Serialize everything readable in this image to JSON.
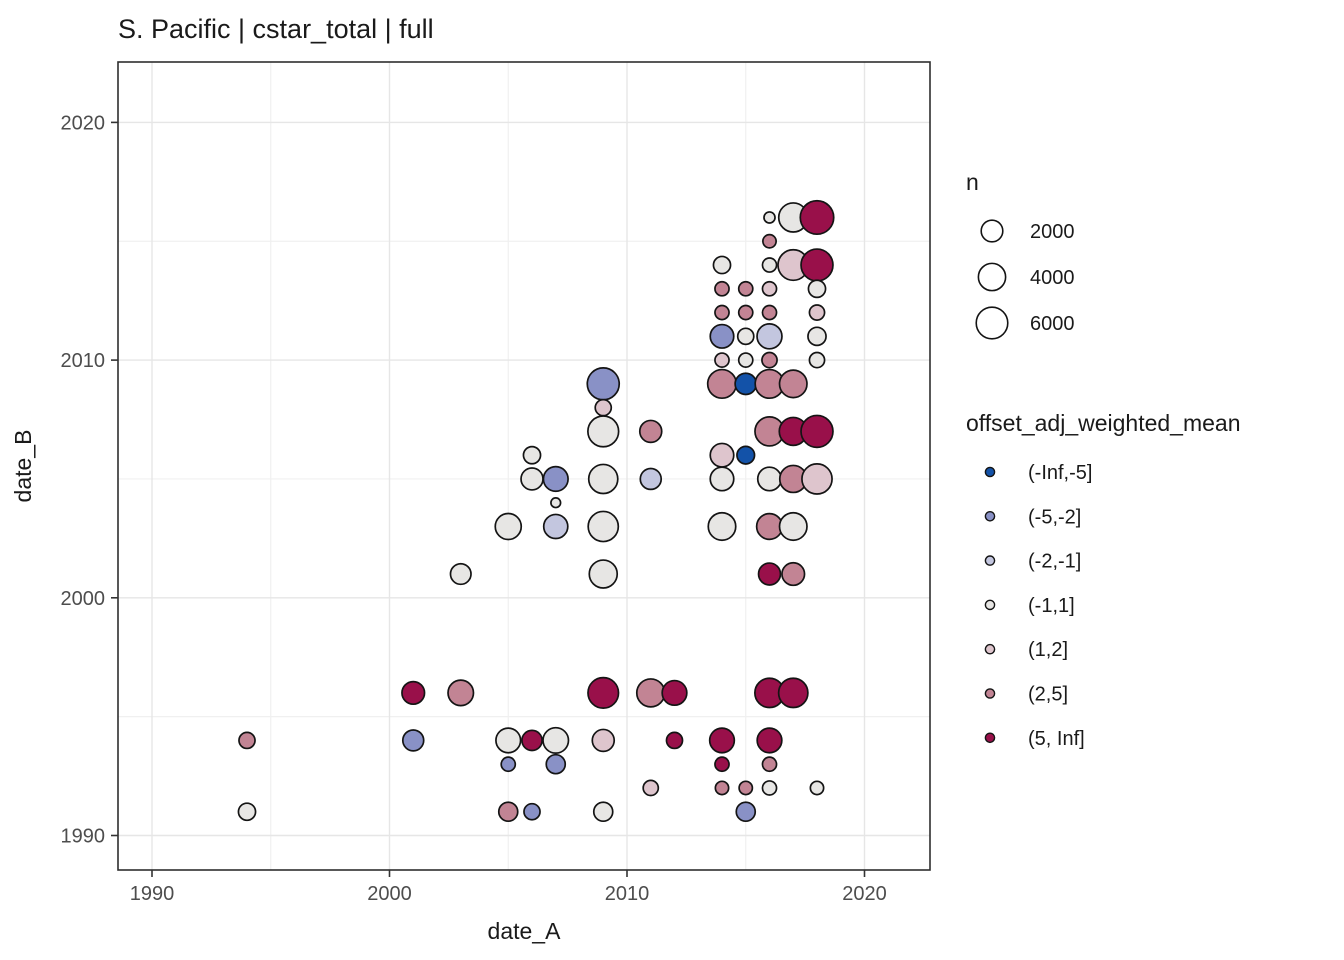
{
  "title": "S. Pacific | cstar_total | full",
  "x_axis": {
    "title": "date_A",
    "ticks": [
      1990,
      2000,
      2010,
      2020
    ],
    "minor_gridlines": [
      1995,
      2005,
      2015
    ],
    "range": [
      1988.6,
      2022.8
    ]
  },
  "y_axis": {
    "title": "date_B",
    "ticks": [
      1990,
      2000,
      2010,
      2020
    ],
    "minor_gridlines": [
      1995,
      2005,
      2015
    ],
    "range": [
      1988.5,
      2022.5
    ]
  },
  "legend_size": {
    "title": "n",
    "values": [
      2000,
      4000,
      6000
    ]
  },
  "legend_color": {
    "title": "offset_adj_weighted_mean",
    "items": [
      {
        "label": "(-Inf,-5]",
        "color": "#1352A8"
      },
      {
        "label": "(-5,-2]",
        "color": "#8991C6"
      },
      {
        "label": "(-2,-1]",
        "color": "#C3C6DF"
      },
      {
        "label": "(-1,1]",
        "color": "#E7E6E4"
      },
      {
        "label": "(1,2]",
        "color": "#DEC5CD"
      },
      {
        "label": "(2,5]",
        "color": "#C28494"
      },
      {
        "label": "(5, Inf]",
        "color": "#99104A"
      }
    ]
  },
  "chart_data": {
    "type": "scatter",
    "title": "S. Pacific | cstar_total | full",
    "xlabel": "date_A",
    "ylabel": "date_B",
    "xlim": [
      1988.6,
      2022.8
    ],
    "ylim": [
      1988.5,
      2022.5
    ],
    "grid": true,
    "legend_position": "right",
    "size_variable": "n",
    "color_variable": "offset_adj_weighted_mean",
    "point_format": "x = date_A year, y = date_B year, n = bubble size (count), b = offset_adj_weighted_mean bin",
    "points": [
      {
        "x": 1994,
        "y": 1994,
        "n": 700,
        "b": "(2,5]"
      },
      {
        "x": 1994,
        "y": 1991,
        "n": 900,
        "b": "(-1,1]"
      },
      {
        "x": 2001,
        "y": 1996,
        "n": 2300,
        "b": "(5, Inf]"
      },
      {
        "x": 2001,
        "y": 1994,
        "n": 1800,
        "b": "(-5,-2]"
      },
      {
        "x": 2003,
        "y": 2001,
        "n": 1700,
        "b": "(-1,1]"
      },
      {
        "x": 2003,
        "y": 1996,
        "n": 3300,
        "b": "(2,5]"
      },
      {
        "x": 2005,
        "y": 2003,
        "n": 3500,
        "b": "(-1,1]"
      },
      {
        "x": 2005,
        "y": 1994,
        "n": 3000,
        "b": "(-1,1]"
      },
      {
        "x": 2005,
        "y": 1993,
        "n": 400,
        "b": "(-5,-2]"
      },
      {
        "x": 2005,
        "y": 1991,
        "n": 1300,
        "b": "(2,5]"
      },
      {
        "x": 2006,
        "y": 2006,
        "n": 900,
        "b": "(-1,1]"
      },
      {
        "x": 2006,
        "y": 2005,
        "n": 2100,
        "b": "(-1,1]"
      },
      {
        "x": 2006,
        "y": 1994,
        "n": 1600,
        "b": "(5, Inf]"
      },
      {
        "x": 2006,
        "y": 1991,
        "n": 700,
        "b": "(-5,-2]"
      },
      {
        "x": 2007,
        "y": 2005,
        "n": 3000,
        "b": "(-5,-2]"
      },
      {
        "x": 2007,
        "y": 2004,
        "n": 30,
        "b": "(-1,1]"
      },
      {
        "x": 2007,
        "y": 2003,
        "n": 2800,
        "b": "(-2,-1]"
      },
      {
        "x": 2007,
        "y": 1994,
        "n": 3300,
        "b": "(-1,1]"
      },
      {
        "x": 2007,
        "y": 1993,
        "n": 1300,
        "b": "(-5,-2]"
      },
      {
        "x": 2009,
        "y": 2009,
        "n": 6200,
        "b": "(-5,-2]"
      },
      {
        "x": 2009,
        "y": 2008,
        "n": 700,
        "b": "(1,2]"
      },
      {
        "x": 2009,
        "y": 2007,
        "n": 5600,
        "b": "(-1,1]"
      },
      {
        "x": 2009,
        "y": 2005,
        "n": 4800,
        "b": "(-1,1]"
      },
      {
        "x": 2009,
        "y": 2003,
        "n": 5300,
        "b": "(-1,1]"
      },
      {
        "x": 2009,
        "y": 2001,
        "n": 4300,
        "b": "(-1,1]"
      },
      {
        "x": 2009,
        "y": 1996,
        "n": 5500,
        "b": "(5, Inf]"
      },
      {
        "x": 2009,
        "y": 1994,
        "n": 2100,
        "b": "(1,2]"
      },
      {
        "x": 2009,
        "y": 1991,
        "n": 1300,
        "b": "(-1,1]"
      },
      {
        "x": 2011,
        "y": 2007,
        "n": 2100,
        "b": "(2,5]"
      },
      {
        "x": 2011,
        "y": 2005,
        "n": 1800,
        "b": "(-2,-1]"
      },
      {
        "x": 2011,
        "y": 1996,
        "n": 4300,
        "b": "(2,5]"
      },
      {
        "x": 2011,
        "y": 1992,
        "n": 550,
        "b": "(1,2]"
      },
      {
        "x": 2012,
        "y": 1996,
        "n": 3000,
        "b": "(5, Inf]"
      },
      {
        "x": 2012,
        "y": 1994,
        "n": 700,
        "b": "(5, Inf]"
      },
      {
        "x": 2014,
        "y": 2014,
        "n": 900,
        "b": "(-1,1]"
      },
      {
        "x": 2014,
        "y": 2013,
        "n": 400,
        "b": "(2,5]"
      },
      {
        "x": 2014,
        "y": 2012,
        "n": 400,
        "b": "(2,5]"
      },
      {
        "x": 2014,
        "y": 2011,
        "n": 2600,
        "b": "(-5,-2]"
      },
      {
        "x": 2014,
        "y": 2010,
        "n": 400,
        "b": "(1,2]"
      },
      {
        "x": 2014,
        "y": 2009,
        "n": 4600,
        "b": "(2,5]"
      },
      {
        "x": 2014,
        "y": 2006,
        "n": 2600,
        "b": "(1,2]"
      },
      {
        "x": 2014,
        "y": 2005,
        "n": 2600,
        "b": "(-1,1]"
      },
      {
        "x": 2014,
        "y": 2003,
        "n": 4100,
        "b": "(-1,1]"
      },
      {
        "x": 2014,
        "y": 1994,
        "n": 3000,
        "b": "(5, Inf]"
      },
      {
        "x": 2014,
        "y": 1993,
        "n": 400,
        "b": "(5, Inf]"
      },
      {
        "x": 2014,
        "y": 1992,
        "n": 300,
        "b": "(2,5]"
      },
      {
        "x": 2015,
        "y": 2013,
        "n": 400,
        "b": "(2,5]"
      },
      {
        "x": 2015,
        "y": 2012,
        "n": 400,
        "b": "(2,5]"
      },
      {
        "x": 2015,
        "y": 2011,
        "n": 700,
        "b": "(-1,1]"
      },
      {
        "x": 2015,
        "y": 2010,
        "n": 400,
        "b": "(-1,1]"
      },
      {
        "x": 2015,
        "y": 2009,
        "n": 1900,
        "b": "(-Inf,-5]"
      },
      {
        "x": 2015,
        "y": 2006,
        "n": 1000,
        "b": "(-Inf,-5]"
      },
      {
        "x": 2015,
        "y": 1992,
        "n": 300,
        "b": "(2,5]"
      },
      {
        "x": 2015,
        "y": 1991,
        "n": 1300,
        "b": "(-5,-2]"
      },
      {
        "x": 2016,
        "y": 2016,
        "n": 100,
        "b": "(-1,1]"
      },
      {
        "x": 2016,
        "y": 2015,
        "n": 300,
        "b": "(2,5]"
      },
      {
        "x": 2016,
        "y": 2014,
        "n": 400,
        "b": "(-1,1]"
      },
      {
        "x": 2016,
        "y": 2013,
        "n": 400,
        "b": "(1,2]"
      },
      {
        "x": 2016,
        "y": 2012,
        "n": 400,
        "b": "(2,5]"
      },
      {
        "x": 2016,
        "y": 2011,
        "n": 3100,
        "b": "(-2,-1]"
      },
      {
        "x": 2016,
        "y": 2010,
        "n": 550,
        "b": "(2,5]"
      },
      {
        "x": 2016,
        "y": 2009,
        "n": 4600,
        "b": "(2,5]"
      },
      {
        "x": 2016,
        "y": 2007,
        "n": 4800,
        "b": "(2,5]"
      },
      {
        "x": 2016,
        "y": 2005,
        "n": 2600,
        "b": "(-1,1]"
      },
      {
        "x": 2016,
        "y": 2003,
        "n": 3400,
        "b": "(2,5]"
      },
      {
        "x": 2016,
        "y": 2001,
        "n": 2100,
        "b": "(5, Inf]"
      },
      {
        "x": 2016,
        "y": 1996,
        "n": 4900,
        "b": "(5, Inf]"
      },
      {
        "x": 2016,
        "y": 1994,
        "n": 3000,
        "b": "(5, Inf]"
      },
      {
        "x": 2016,
        "y": 1993,
        "n": 400,
        "b": "(2,5]"
      },
      {
        "x": 2016,
        "y": 1992,
        "n": 400,
        "b": "(-1,1]"
      },
      {
        "x": 2017,
        "y": 2016,
        "n": 4800,
        "b": "(-1,1]"
      },
      {
        "x": 2017,
        "y": 2014,
        "n": 5500,
        "b": "(1,2]"
      },
      {
        "x": 2017,
        "y": 2009,
        "n": 4100,
        "b": "(2,5]"
      },
      {
        "x": 2017,
        "y": 2007,
        "n": 4300,
        "b": "(5, Inf]"
      },
      {
        "x": 2017,
        "y": 2005,
        "n": 3900,
        "b": "(2,5]"
      },
      {
        "x": 2017,
        "y": 2003,
        "n": 4100,
        "b": "(-1,1]"
      },
      {
        "x": 2017,
        "y": 2001,
        "n": 2300,
        "b": "(2,5]"
      },
      {
        "x": 2017,
        "y": 1996,
        "n": 4900,
        "b": "(5, Inf]"
      },
      {
        "x": 2018,
        "y": 2016,
        "n": 7000,
        "b": "(5, Inf]"
      },
      {
        "x": 2018,
        "y": 2014,
        "n": 6200,
        "b": "(5, Inf]"
      },
      {
        "x": 2018,
        "y": 2013,
        "n": 900,
        "b": "(-1,1]"
      },
      {
        "x": 2018,
        "y": 2012,
        "n": 550,
        "b": "(1,2]"
      },
      {
        "x": 2018,
        "y": 2011,
        "n": 1100,
        "b": "(-1,1]"
      },
      {
        "x": 2018,
        "y": 2010,
        "n": 550,
        "b": "(-1,1]"
      },
      {
        "x": 2018,
        "y": 2007,
        "n": 6200,
        "b": "(5, Inf]"
      },
      {
        "x": 2018,
        "y": 2005,
        "n": 5300,
        "b": "(1,2]"
      },
      {
        "x": 2018,
        "y": 1992,
        "n": 300,
        "b": "(-1,1]"
      }
    ]
  }
}
